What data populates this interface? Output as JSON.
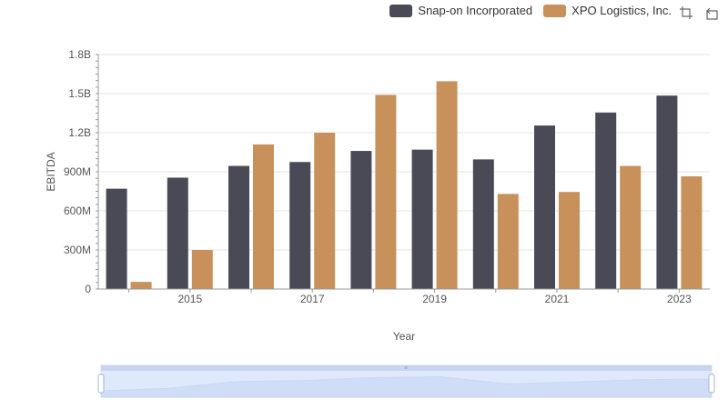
{
  "legend": {
    "items": [
      {
        "label": "Snap-on Incorporated",
        "color": "#4a4a57"
      },
      {
        "label": "XPO Logistics, Inc.",
        "color": "#c8915c"
      }
    ]
  },
  "toolbox": {
    "icons": [
      "zoom-icon",
      "restore-icon"
    ]
  },
  "chart_data": {
    "type": "bar",
    "ylabel": "EBITDA",
    "xlabel": "Year",
    "categories": [
      "2014",
      "2015",
      "2016",
      "2017",
      "2018",
      "2019",
      "2020",
      "2021",
      "2022",
      "2023"
    ],
    "x_tick_labels": [
      "2015",
      "2017",
      "2019",
      "2021",
      "2023"
    ],
    "y_tick_labels": [
      "0",
      "300M",
      "600M",
      "900M",
      "1.2B",
      "1.5B",
      "1.8B"
    ],
    "ylim": [
      0,
      1800000000
    ],
    "grid": true,
    "legend_position": "top-right",
    "series": [
      {
        "name": "Snap-on Incorporated",
        "color": "#4a4a57",
        "values": [
          770000000,
          855000000,
          945000000,
          975000000,
          1060000000,
          1070000000,
          995000000,
          1255000000,
          1355000000,
          1485000000
        ]
      },
      {
        "name": "XPO Logistics, Inc.",
        "color": "#c8915c",
        "values": [
          55000000,
          300000000,
          1110000000,
          1200000000,
          1490000000,
          1595000000,
          730000000,
          745000000,
          945000000,
          865000000
        ]
      }
    ]
  }
}
